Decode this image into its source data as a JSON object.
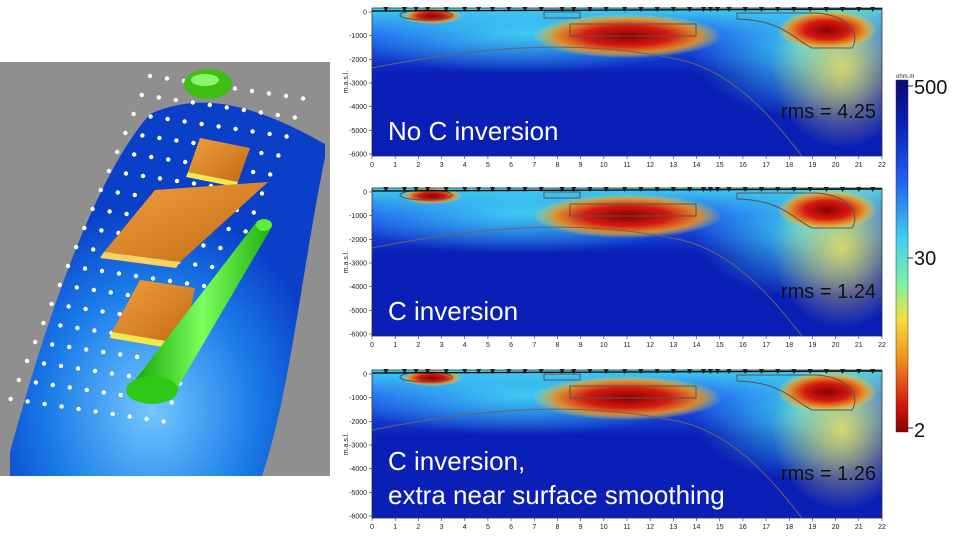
{
  "panels": [
    {
      "label_lines": [
        "No C inversion"
      ],
      "rms": "rms = 4.25"
    },
    {
      "label_lines": [
        "C inversion"
      ],
      "rms": "rms = 1.24"
    },
    {
      "label_lines": [
        "C inversion,",
        "extra near surface smoothing"
      ],
      "rms": "rms = 1.26"
    }
  ],
  "axes": {
    "ylabel": "m.a.s.l.",
    "y_ticks": [
      "0",
      "-1000",
      "-2000",
      "-3000",
      "-4000",
      "-5000",
      "-6000"
    ],
    "x_ticks": [
      "0",
      "1",
      "2",
      "3",
      "4",
      "5",
      "6",
      "7",
      "8",
      "9",
      "10",
      "11",
      "12",
      "13",
      "14",
      "15",
      "16",
      "17",
      "18",
      "19",
      "20",
      "21",
      "22"
    ]
  },
  "colorbar": {
    "unit": "ohm.m",
    "labels": [
      "500",
      "30",
      "2"
    ]
  },
  "colors": {
    "deep_blue": "#0a1fb5",
    "mid_blue": "#1f5cf0",
    "cyan": "#3fd0f0",
    "yellow": "#f3e03a",
    "orange": "#f08a1a",
    "red": "#d41a10",
    "dark_red": "#8a0000"
  }
}
